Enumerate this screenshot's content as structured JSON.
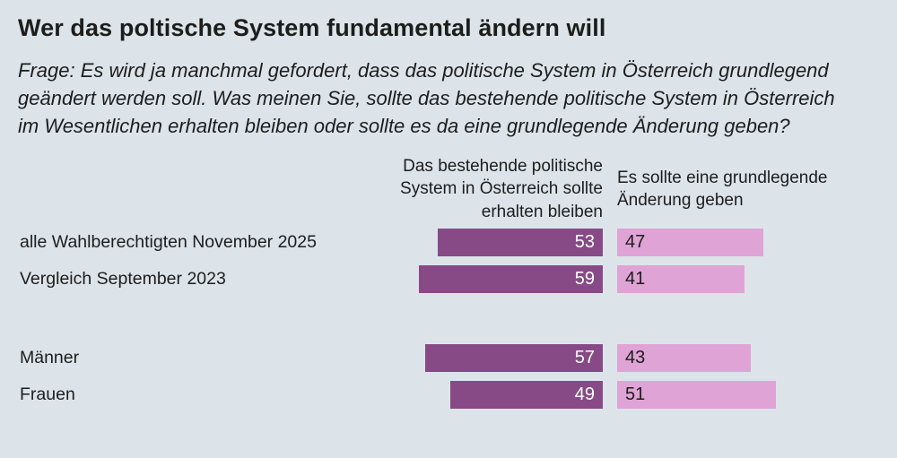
{
  "header": {
    "title": "Wer das poltische System fundamental ändern will",
    "question": "Frage: Es wird ja manchmal gefordert, dass das politische System in Österreich grundlegend geändert werden soll. Was meinen Sie, sollte das bestehende politische System in Österreich im Wesentlichen erhalten bleiben oder sollte es da eine grundlegende Änderung geben?"
  },
  "colors": {
    "background": "#dce4ea",
    "keep_bar": "#874a86",
    "change_bar": "#dfa3d5",
    "text": "#1d1d1b",
    "value_on_dark": "#ffffff"
  },
  "chart_data": {
    "type": "bar",
    "variant": "diverging-horizontal",
    "title": "Wer das poltische System fundamental ändern will",
    "categories": [
      "alle Wahlberechtigten November 2025",
      "Vergleich September 2023",
      "Männer",
      "Frauen"
    ],
    "series": [
      {
        "name": "Das bestehende politische System in Österreich sollte erhalten bleiben",
        "values": [
          53,
          59,
          57,
          49
        ],
        "color": "#874a86"
      },
      {
        "name": "Es sollte eine grundlegende Änderung geben",
        "values": [
          47,
          41,
          43,
          51
        ],
        "color": "#dfa3d5"
      }
    ],
    "unit": "percent",
    "xlim": [
      0,
      100
    ],
    "value_labels": true,
    "group_break_after": 1,
    "legend_position": "column-headers",
    "grid": false
  }
}
